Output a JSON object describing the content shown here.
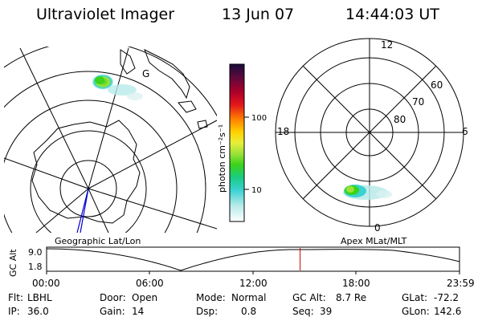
{
  "header": {
    "instrument": "Ultraviolet Imager",
    "date": "13 Jun 07",
    "time": "14:44:03 UT"
  },
  "left_panel": {
    "label": "Geographic Lat/Lon",
    "marker": "G"
  },
  "right_panel": {
    "label": "Apex MLat/MLT",
    "mlt_labels": {
      "top": "12",
      "left": "18",
      "right": "6",
      "bottom": "0"
    },
    "lat_labels": [
      "60",
      "70",
      "80"
    ]
  },
  "colorbar": {
    "title": "photon cm⁻²s⁻¹",
    "ticks": [
      "100",
      "10"
    ],
    "colors": [
      "#1a0a3c",
      "#5a0a3c",
      "#b0002a",
      "#e4181a",
      "#ff8000",
      "#ffd000",
      "#e8f03a",
      "#9ae23a",
      "#3ad21a",
      "#1acc82",
      "#3ad2d2",
      "#b8eaea",
      "#ffffff"
    ]
  },
  "timeline": {
    "axis_label": "GC Alt",
    "y_ticks": [
      "9.0",
      "1.8"
    ],
    "x_ticks": [
      "00:00",
      "06:00",
      "12:00",
      "18:00",
      "23:59"
    ],
    "current_time_fraction": 0.614
  },
  "info": {
    "row1": [
      {
        "label": "Flt:",
        "value": "LBHL"
      },
      {
        "label": "Door:",
        "value": "Open"
      },
      {
        "label": "Mode:",
        "value": "Normal"
      },
      {
        "label": "GC Alt:",
        "value": "8.7 Re"
      },
      {
        "label": "GLat:",
        "value": "-72.2"
      }
    ],
    "row2": [
      {
        "label": "IP:",
        "value": "36.0"
      },
      {
        "label": "Gain:",
        "value": "14"
      },
      {
        "label": "Dsp:",
        "value": "0.8"
      },
      {
        "label": "Seq:",
        "value": "39"
      },
      {
        "label": "GLon:",
        "value": "142.6"
      }
    ]
  }
}
